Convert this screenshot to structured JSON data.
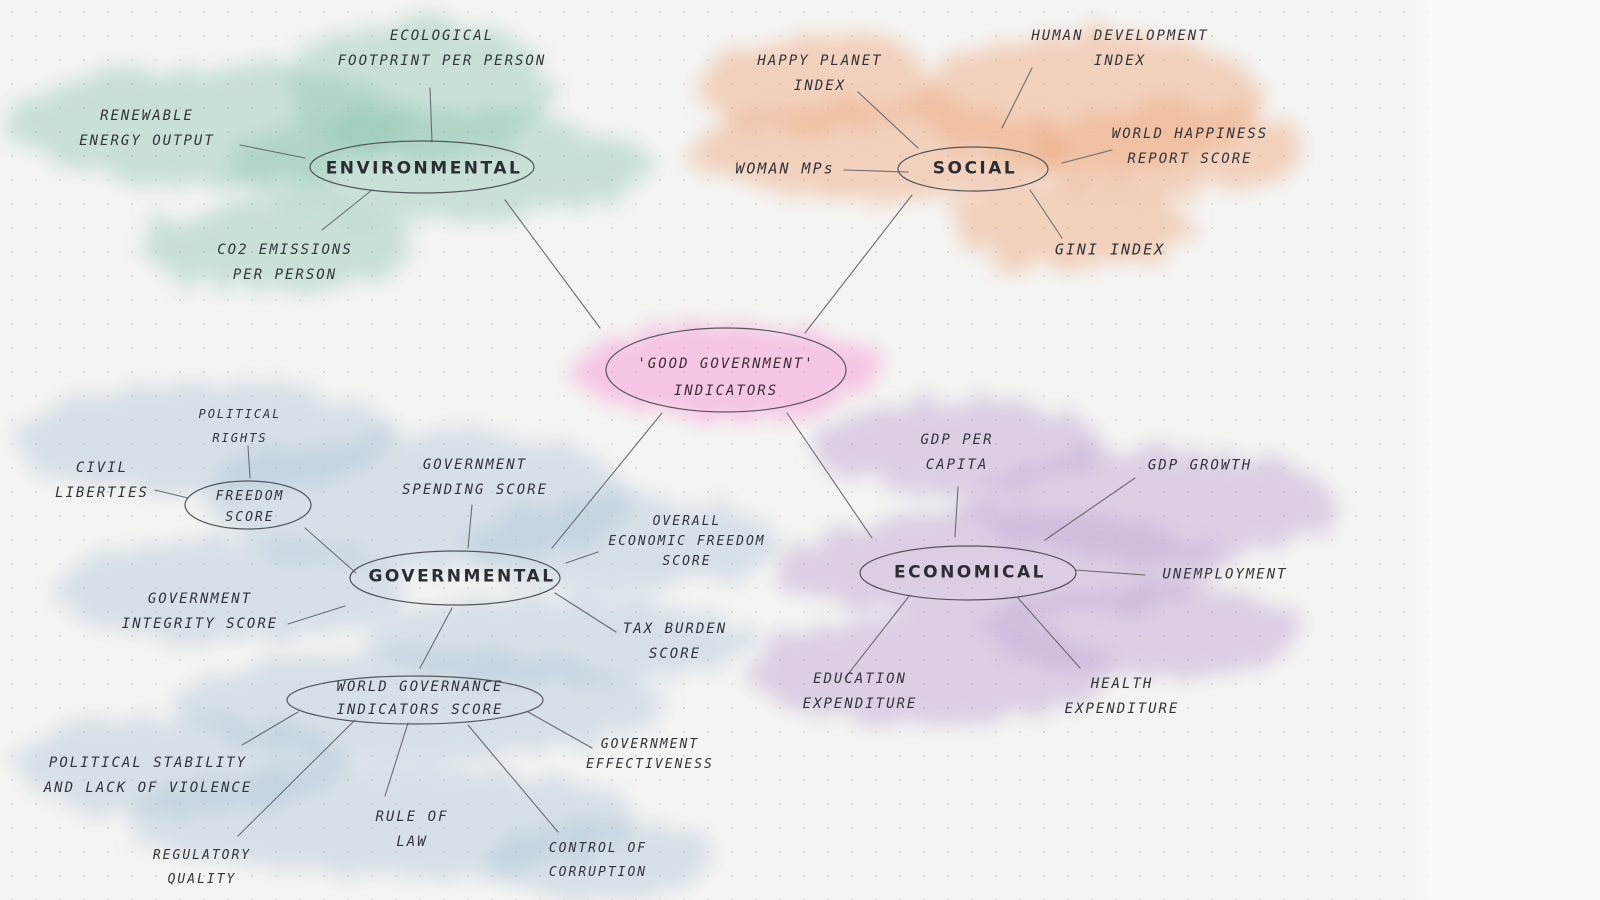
{
  "colors": {
    "environmental": "#8ec5b3",
    "social": "#f0b08a",
    "central": "#f7a6dc",
    "governmental": "#aec6d9",
    "economical": "#c4abd8",
    "ink": "#3a3b40"
  },
  "central": {
    "lines": [
      "'GOOD GOVERNMENT'",
      "INDICATORS"
    ]
  },
  "hubs": {
    "environmental": "ENVIRONMENTAL",
    "social": "SOCIAL",
    "governmental": "GOVERNMENTAL",
    "economical": "ECONOMICAL",
    "freedom": [
      "FREEDOM",
      "SCORE"
    ],
    "wgi": [
      "WORLD GOVERNANCE",
      "INDICATORS SCORE"
    ]
  },
  "environmental_items": {
    "footprint": [
      "ECOLOGICAL",
      "FOOTPRINT PER PERSON"
    ],
    "renewable": [
      "RENEWABLE",
      "ENERGY OUTPUT"
    ],
    "co2": [
      "CO2 EMISSIONS",
      "PER PERSON"
    ]
  },
  "social_items": {
    "hpi": [
      "HAPPY PLANET",
      "INDEX"
    ],
    "hdi": [
      "HUMAN DEVELOPMENT",
      "INDEX"
    ],
    "whr": [
      "WORLD HAPPINESS",
      "REPORT SCORE"
    ],
    "mps": [
      "WOMAN MPs"
    ],
    "gini": [
      "GINI INDEX"
    ]
  },
  "governmental_items": {
    "political_rights": [
      "POLITICAL",
      "RIGHTS"
    ],
    "civil_liberties": [
      "CIVIL",
      "LIBERTIES"
    ],
    "spending": [
      "GOVERNMENT",
      "SPENDING SCORE"
    ],
    "economic_freedom": [
      "OVERALL",
      "ECONOMIC FREEDOM",
      "SCORE"
    ],
    "integrity": [
      "GOVERNMENT",
      "INTEGRITY SCORE"
    ],
    "tax": [
      "TAX BURDEN",
      "SCORE"
    ],
    "effectiveness": [
      "GOVERNMENT",
      "EFFECTIVENESS"
    ],
    "stability": [
      "POLITICAL STABILITY",
      "AND LACK OF VIOLENCE"
    ],
    "rule_of_law": [
      "RULE OF",
      "LAW"
    ],
    "regulatory": [
      "REGULATORY",
      "QUALITY"
    ],
    "corruption": [
      "CONTROL OF",
      "CORRUPTION"
    ]
  },
  "economical_items": {
    "gdp_capita": [
      "GDP PER",
      "CAPITA"
    ],
    "gdp_growth": [
      "GDP GROWTH"
    ],
    "unemployment": [
      "UNEMPLOYMENT"
    ],
    "education": [
      "EDUCATION",
      "EXPENDITURE"
    ],
    "health": [
      "HEALTH",
      "EXPENDITURE"
    ]
  }
}
